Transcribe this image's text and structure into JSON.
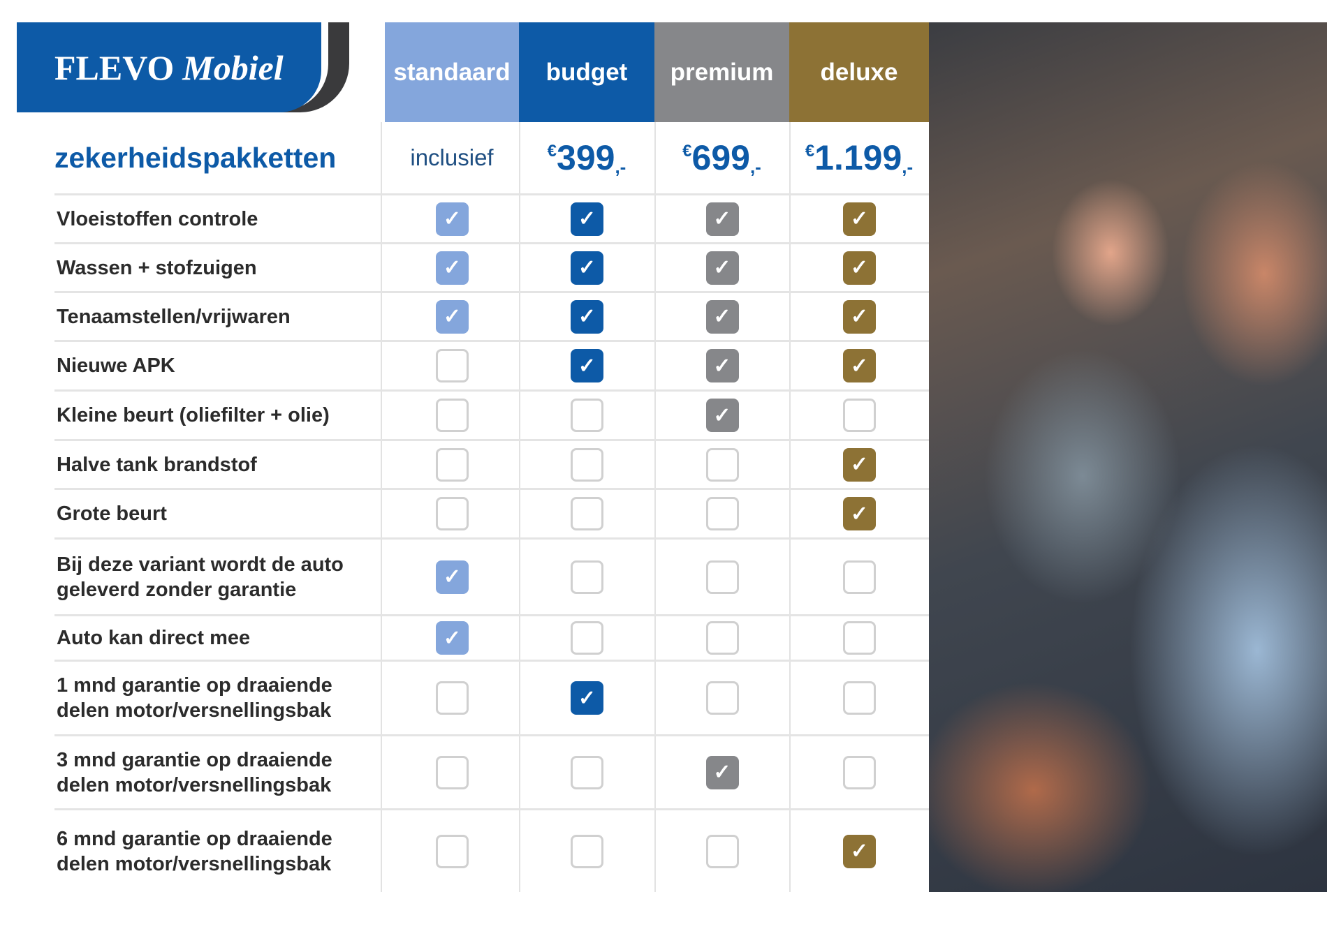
{
  "logo": {
    "brand": "FLEVO",
    "brand_italic": "Mobiel",
    "shape_color": "#0d5aa7"
  },
  "title": "zekerheidspakketten",
  "packages": [
    {
      "name": "standaard",
      "color": "#84a6dc",
      "price_text": "inclusief",
      "price": null
    },
    {
      "name": "budget",
      "color": "#0d5aa7",
      "currency": "€",
      "price": "399",
      "suffix": ",-"
    },
    {
      "name": "premium",
      "color": "#86878a",
      "currency": "€",
      "price": "699",
      "suffix": ",-"
    },
    {
      "name": "deluxe",
      "color": "#8d7235",
      "currency": "€",
      "price": "1.199",
      "suffix": ",-"
    }
  ],
  "features": [
    {
      "label": "Vloeistoffen controle",
      "checks": [
        true,
        true,
        true,
        true
      ]
    },
    {
      "label": "Wassen + stofzuigen",
      "checks": [
        true,
        true,
        true,
        true
      ]
    },
    {
      "label": "Tenaamstellen/vrijwaren",
      "checks": [
        true,
        true,
        true,
        true
      ]
    },
    {
      "label": "Nieuwe APK",
      "checks": [
        false,
        true,
        true,
        true
      ]
    },
    {
      "label": "Kleine beurt (oliefilter + olie)",
      "checks": [
        false,
        false,
        true,
        false
      ]
    },
    {
      "label": "Halve tank brandstof",
      "checks": [
        false,
        false,
        false,
        true
      ]
    },
    {
      "label": "Grote beurt",
      "checks": [
        false,
        false,
        false,
        true
      ]
    },
    {
      "label": "Bij deze variant wordt de auto geleverd zonder garantie",
      "checks": [
        true,
        false,
        false,
        false
      ]
    },
    {
      "label": "Auto kan direct mee",
      "checks": [
        true,
        false,
        false,
        false
      ]
    },
    {
      "label": "1 mnd garantie op draaiende delen motor/versnellingsbak",
      "checks": [
        false,
        true,
        false,
        false
      ]
    },
    {
      "label": "3 mnd garantie op draaiende delen motor/versnellingsbak",
      "checks": [
        false,
        false,
        true,
        false
      ]
    },
    {
      "label": "6 mnd garantie op draaiende delen motor/versnellingsbak",
      "checks": [
        false,
        false,
        false,
        true
      ]
    }
  ],
  "photo": {
    "icon": "couple-in-car-photo"
  }
}
